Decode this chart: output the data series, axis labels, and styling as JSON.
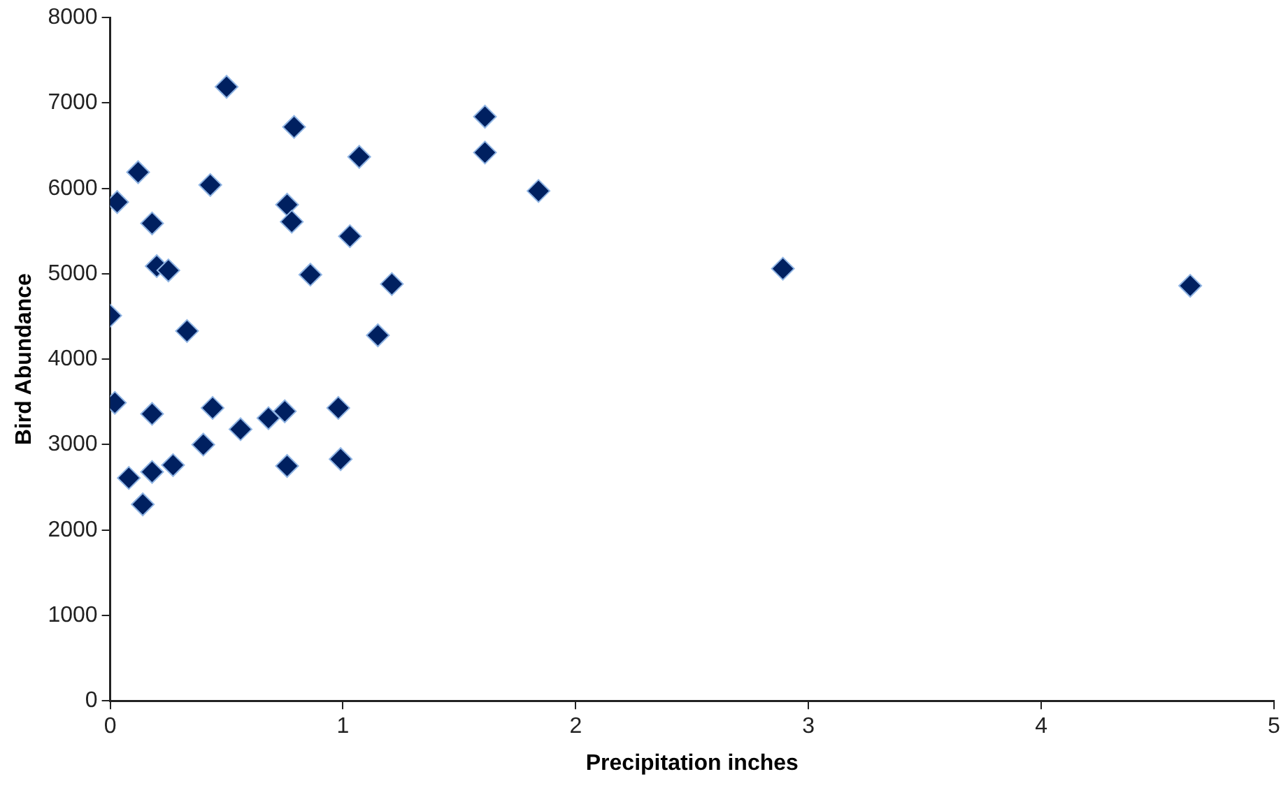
{
  "chart_data": {
    "type": "scatter",
    "xlabel": "Precipitation inches",
    "ylabel": "Bird Abundance",
    "x": [
      0.0,
      0.03,
      0.12,
      0.18,
      0.2,
      0.25,
      0.33,
      0.43,
      0.5,
      0.76,
      0.78,
      0.79,
      0.86,
      1.03,
      1.07,
      1.15,
      1.21,
      1.61,
      1.61,
      1.84,
      2.89,
      4.64,
      0.02,
      0.18,
      0.44,
      0.08,
      0.18,
      0.27,
      0.14,
      0.4,
      0.56,
      0.68,
      0.75,
      0.76,
      0.98,
      0.99
    ],
    "series": [
      {
        "color": "#002060",
        "values": [
          4510,
          5840,
          6190,
          5590,
          5090,
          5040,
          4330,
          6040,
          7190,
          5810,
          5610,
          6720,
          4990,
          5440,
          6370,
          4280,
          4880,
          6840,
          6420,
          5970,
          5060,
          4860,
          3490,
          3360,
          3430,
          2610,
          2680,
          2760,
          2300,
          3000,
          3180,
          3310,
          3390,
          2750,
          3430,
          2830
        ]
      }
    ],
    "xlim": [
      0,
      5
    ],
    "xticks": [
      0,
      1,
      2,
      3,
      4,
      5
    ],
    "ylim": [
      0,
      8000
    ],
    "yticks": [
      0,
      1000,
      2000,
      3000,
      4000,
      5000,
      6000,
      7000,
      8000
    ],
    "marker": "diamond",
    "grid": false,
    "legend": false
  }
}
